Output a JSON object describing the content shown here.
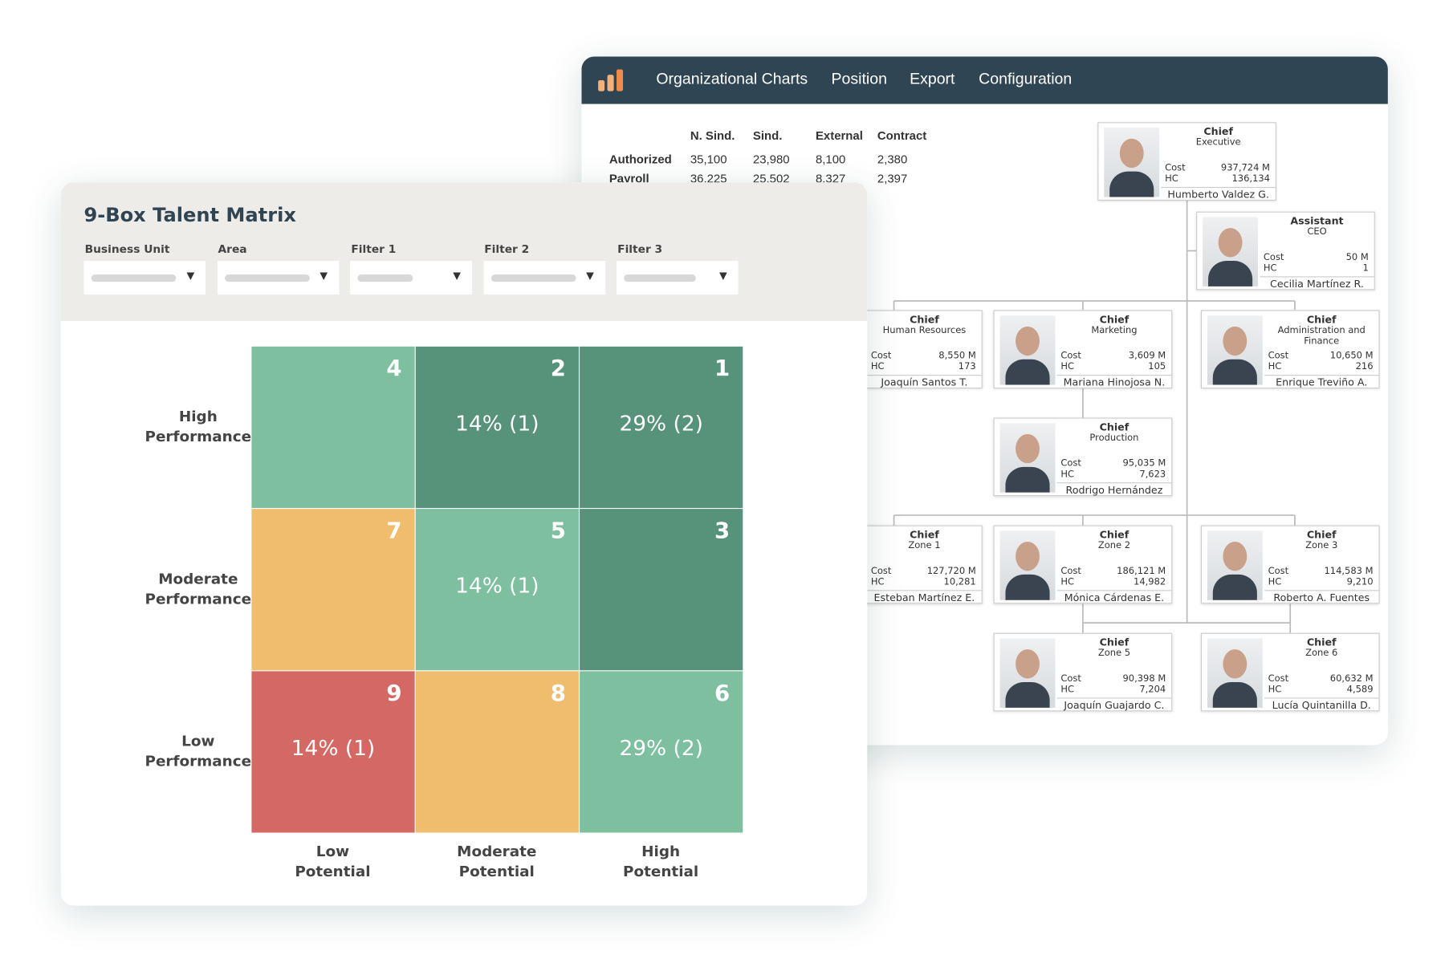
{
  "org_window": {
    "nav": [
      "Organizational Charts",
      "Position",
      "Export",
      "Configuration"
    ],
    "stats": {
      "columns": [
        "N. Sind.",
        "Sind.",
        "External",
        "Contract"
      ],
      "rows": [
        {
          "label": "Authorized",
          "values": [
            "35,100",
            "23,980",
            "8,100",
            "2,380"
          ]
        },
        {
          "label": "Payroll",
          "values": [
            "36,225",
            "25,502",
            "8,327",
            "2,397"
          ]
        }
      ]
    },
    "cost_label": "Cost",
    "hc_label": "HC",
    "nodes": [
      {
        "title": "Chief",
        "unit": "Executive",
        "cost": "937,724 M",
        "hc": "136,134",
        "name": "Humberto Valdez G."
      },
      {
        "title": "Assistant",
        "unit": "CEO",
        "cost": "50 M",
        "hc": "1",
        "name": "Cecilia Martínez R."
      },
      {
        "title": "Chief",
        "unit": "Human Resources",
        "cost": "8,550 M",
        "hc": "173",
        "name": "Joaquín Santos T."
      },
      {
        "title": "Chief",
        "unit": "Marketing",
        "cost": "3,609 M",
        "hc": "105",
        "name": "Mariana Hinojosa N."
      },
      {
        "title": "Chief",
        "unit": "Administration and Finance",
        "cost": "10,650 M",
        "hc": "216",
        "name": "Enrique Treviño A."
      },
      {
        "title": "Chief",
        "unit": "Production",
        "cost": "95,035 M",
        "hc": "7,623",
        "name": "Rodrigo Hernández"
      },
      {
        "title": "Chief",
        "unit": "Zone 1",
        "cost": "127,720 M",
        "hc": "10,281",
        "name": "Esteban Martínez E."
      },
      {
        "title": "Chief",
        "unit": "Zone 2",
        "cost": "186,121 M",
        "hc": "14,982",
        "name": "Mónica Cárdenas E."
      },
      {
        "title": "Chief",
        "unit": "Zone 3",
        "cost": "114,583 M",
        "hc": "9,210",
        "name": "Roberto A. Fuentes"
      },
      {
        "title": "Chief",
        "unit": "Zone 5",
        "cost": "90,398 M",
        "hc": "7,204",
        "name": "Joaquín Guajardo C."
      },
      {
        "title": "Chief",
        "unit": "Zone 6",
        "cost": "60,632 M",
        "hc": "4,589",
        "name": "Lucía Quintanilla D."
      }
    ]
  },
  "talent_matrix": {
    "title": "9-Box Talent Matrix",
    "filters": [
      "Business Unit",
      "Area",
      "Filter 1",
      "Filter 2",
      "Filter 3"
    ],
    "rows": [
      "High Performance",
      "Moderate Performance",
      "Low Performance"
    ],
    "columns": [
      "Low Potential",
      "Moderate Potential",
      "High Potential"
    ],
    "cells": [
      [
        {
          "box": 4,
          "color": "#7dbf9f"
        },
        {
          "box": 2,
          "label": "14% (1)",
          "color": "#56937a"
        },
        {
          "box": 1,
          "label": "29% (2)",
          "color": "#56937a"
        }
      ],
      [
        {
          "box": 7,
          "color": "#f0bd6e"
        },
        {
          "box": 5,
          "label": "14% (1)",
          "color": "#7dbf9f"
        },
        {
          "box": 3,
          "color": "#56937a"
        }
      ],
      [
        {
          "box": 9,
          "label": "14% (1)",
          "color": "#d46865"
        },
        {
          "box": 8,
          "color": "#f0bd6e"
        },
        {
          "box": 6,
          "label": "29% (2)",
          "color": "#7dbf9f"
        }
      ]
    ]
  }
}
